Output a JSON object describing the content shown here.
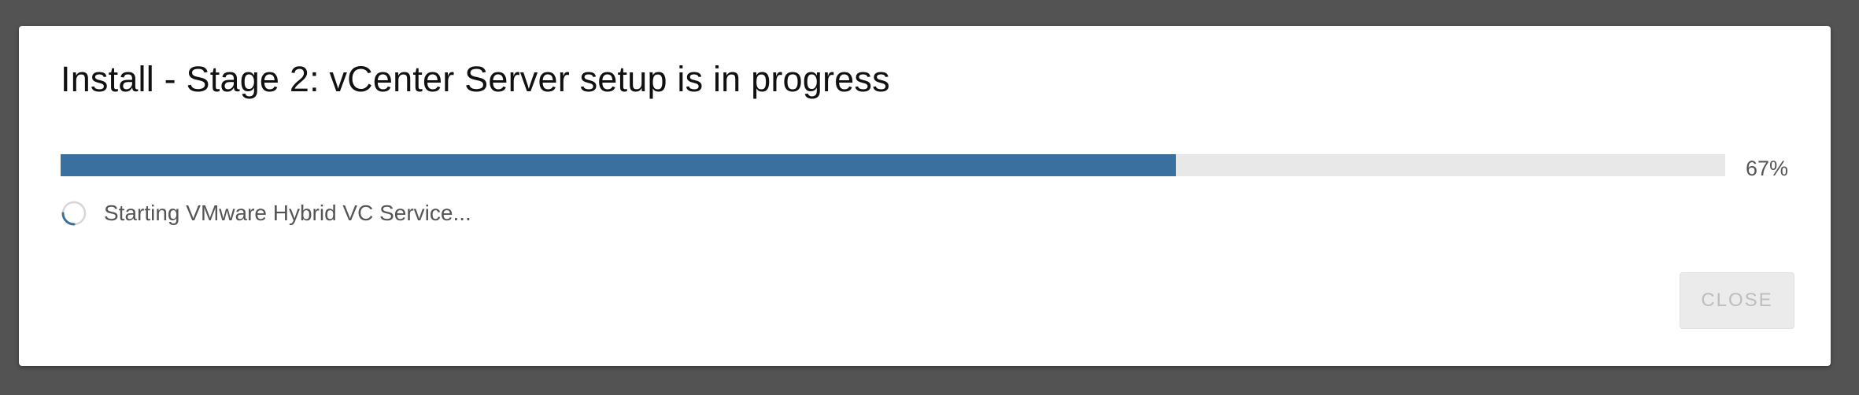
{
  "dialog": {
    "title": "Install - Stage 2: vCenter Server setup is in progress",
    "progress": {
      "percent": 67,
      "label": "67%",
      "color": "#3a70a0"
    },
    "status": {
      "text": "Starting VMware Hybrid VC Service...",
      "icon": "loading-spinner-icon"
    },
    "close_label": "CLOSE"
  }
}
